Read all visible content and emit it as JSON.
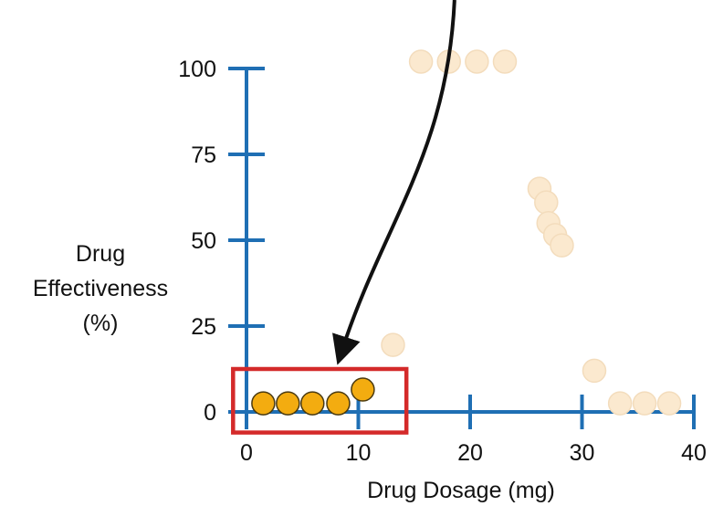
{
  "chart_data": {
    "type": "scatter",
    "xlabel": "Drug Dosage (mg)",
    "ylabel_lines": [
      "Drug",
      "Effectiveness",
      "(%)"
    ],
    "xlim": [
      0,
      40
    ],
    "ylim": [
      0,
      100
    ],
    "x_ticks": [
      0,
      10,
      20,
      30,
      40
    ],
    "y_ticks": [
      0,
      25,
      50,
      75,
      100
    ],
    "grid": false,
    "colors": {
      "axis": "#1f6fb4",
      "highlight_fill": "#f3ac10",
      "highlight_stroke": "#4a3a10",
      "faded_fill": "#fbe9cf",
      "faded_stroke": "#f3dcbc",
      "box": "#d42a2a",
      "arrow": "#111111"
    },
    "series": [
      {
        "style": "highlight",
        "points": [
          {
            "x": 1.5,
            "y": 2.5
          },
          {
            "x": 3.7,
            "y": 2.5
          },
          {
            "x": 5.9,
            "y": 2.5
          },
          {
            "x": 8.2,
            "y": 2.5
          },
          {
            "x": 10.4,
            "y": 6.5
          }
        ]
      },
      {
        "style": "faded",
        "points": [
          {
            "x": 13.1,
            "y": 19.5
          },
          {
            "x": 15.6,
            "y": 102.0
          },
          {
            "x": 18.1,
            "y": 102.0
          },
          {
            "x": 20.6,
            "y": 102.0
          },
          {
            "x": 23.1,
            "y": 102.0
          },
          {
            "x": 26.2,
            "y": 65.0
          },
          {
            "x": 26.8,
            "y": 61.0
          },
          {
            "x": 27.0,
            "y": 55.0
          },
          {
            "x": 27.6,
            "y": 51.5
          },
          {
            "x": 28.2,
            "y": 48.5
          },
          {
            "x": 31.1,
            "y": 12.0
          },
          {
            "x": 33.4,
            "y": 2.5
          },
          {
            "x": 35.6,
            "y": 2.5
          },
          {
            "x": 37.8,
            "y": 2.5
          }
        ]
      }
    ],
    "annotations": [
      {
        "type": "highlight-box",
        "x_range": [
          -1.2,
          14.3
        ],
        "y_range": [
          -6.0,
          12.5
        ]
      },
      {
        "type": "arrow",
        "from_top_at_x": 18.6,
        "to": {
          "x": 8.5,
          "y": 17.5
        }
      }
    ]
  }
}
